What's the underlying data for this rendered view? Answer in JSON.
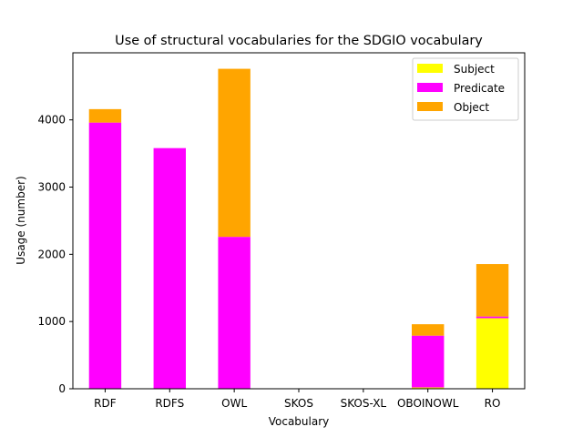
{
  "chart_data": {
    "type": "bar",
    "stacked": true,
    "title": "Use of structural vocabularies for the SDGIO vocabulary",
    "xlabel": "Vocabulary",
    "ylabel": "Usage (number)",
    "categories": [
      "RDF",
      "RDFS",
      "OWL",
      "SKOS",
      "SKOS-XL",
      "OBOINOWL",
      "RO"
    ],
    "series": [
      {
        "name": "Subject",
        "color": "#ffff00",
        "values": [
          0,
          0,
          0,
          0,
          0,
          20,
          1050
        ]
      },
      {
        "name": "Predicate",
        "color": "#ff00ff",
        "values": [
          3960,
          3580,
          2260,
          0,
          0,
          770,
          25
        ]
      },
      {
        "name": "Object",
        "color": "#ffa500",
        "values": [
          200,
          0,
          2500,
          0,
          0,
          170,
          780
        ]
      }
    ],
    "yticks": [
      0,
      1000,
      2000,
      3000,
      4000
    ],
    "ylim": [
      0,
      4998
    ],
    "grid": false,
    "legend_position": "top-right"
  }
}
